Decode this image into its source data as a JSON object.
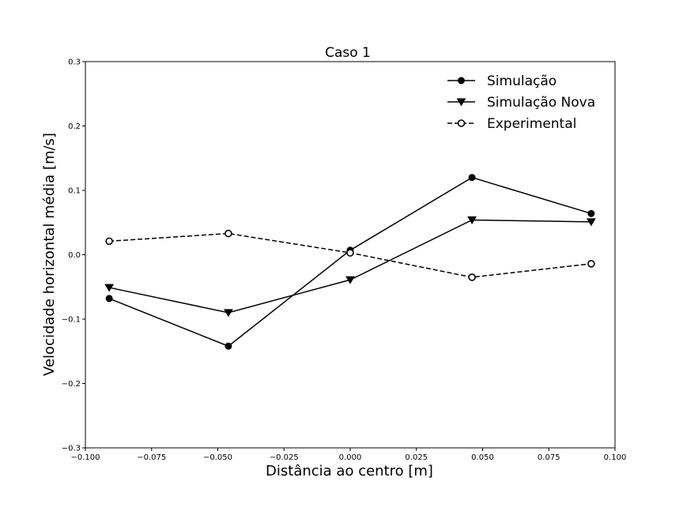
{
  "chart_data": {
    "type": "line",
    "title": "Caso 1",
    "xlabel": "Distância ao centro [m]",
    "ylabel": "Velocidade horizontal média [m/s]",
    "xlim": [
      -0.1,
      0.1
    ],
    "ylim": [
      -0.3,
      0.3
    ],
    "x_ticks": [
      -0.1,
      -0.075,
      -0.05,
      -0.025,
      0.0,
      0.025,
      0.05,
      0.075,
      0.1
    ],
    "x_tick_labels": [
      "−0.100",
      "−0.075",
      "−0.050",
      "−0.025",
      "0.000",
      "0.025",
      "0.050",
      "0.075",
      "0.100"
    ],
    "y_ticks": [
      -0.3,
      -0.2,
      -0.1,
      0.0,
      0.1,
      0.2,
      0.3
    ],
    "y_tick_labels": [
      "−0.3",
      "−0.2",
      "−0.1",
      "0.0",
      "0.1",
      "0.2",
      "0.3"
    ],
    "grid": false,
    "legend_position": "top-right",
    "series": [
      {
        "name": "Simulação",
        "marker": "filled-circle",
        "line_style": "solid",
        "color": "#000000",
        "x": [
          -0.091,
          -0.046,
          0.0,
          0.046,
          0.091
        ],
        "y": [
          -0.068,
          -0.142,
          0.007,
          0.12,
          0.064
        ]
      },
      {
        "name": "Simulação Nova",
        "marker": "filled-triangle-down",
        "line_style": "solid",
        "color": "#000000",
        "x": [
          -0.091,
          -0.046,
          0.0,
          0.046,
          0.091
        ],
        "y": [
          -0.051,
          -0.09,
          -0.039,
          0.054,
          0.051
        ]
      },
      {
        "name": "Experimental",
        "marker": "open-circle",
        "line_style": "dashed",
        "color": "#000000",
        "x": [
          -0.091,
          -0.046,
          0.0,
          0.046,
          0.091
        ],
        "y": [
          0.021,
          0.033,
          0.003,
          -0.035,
          -0.014
        ]
      }
    ]
  }
}
